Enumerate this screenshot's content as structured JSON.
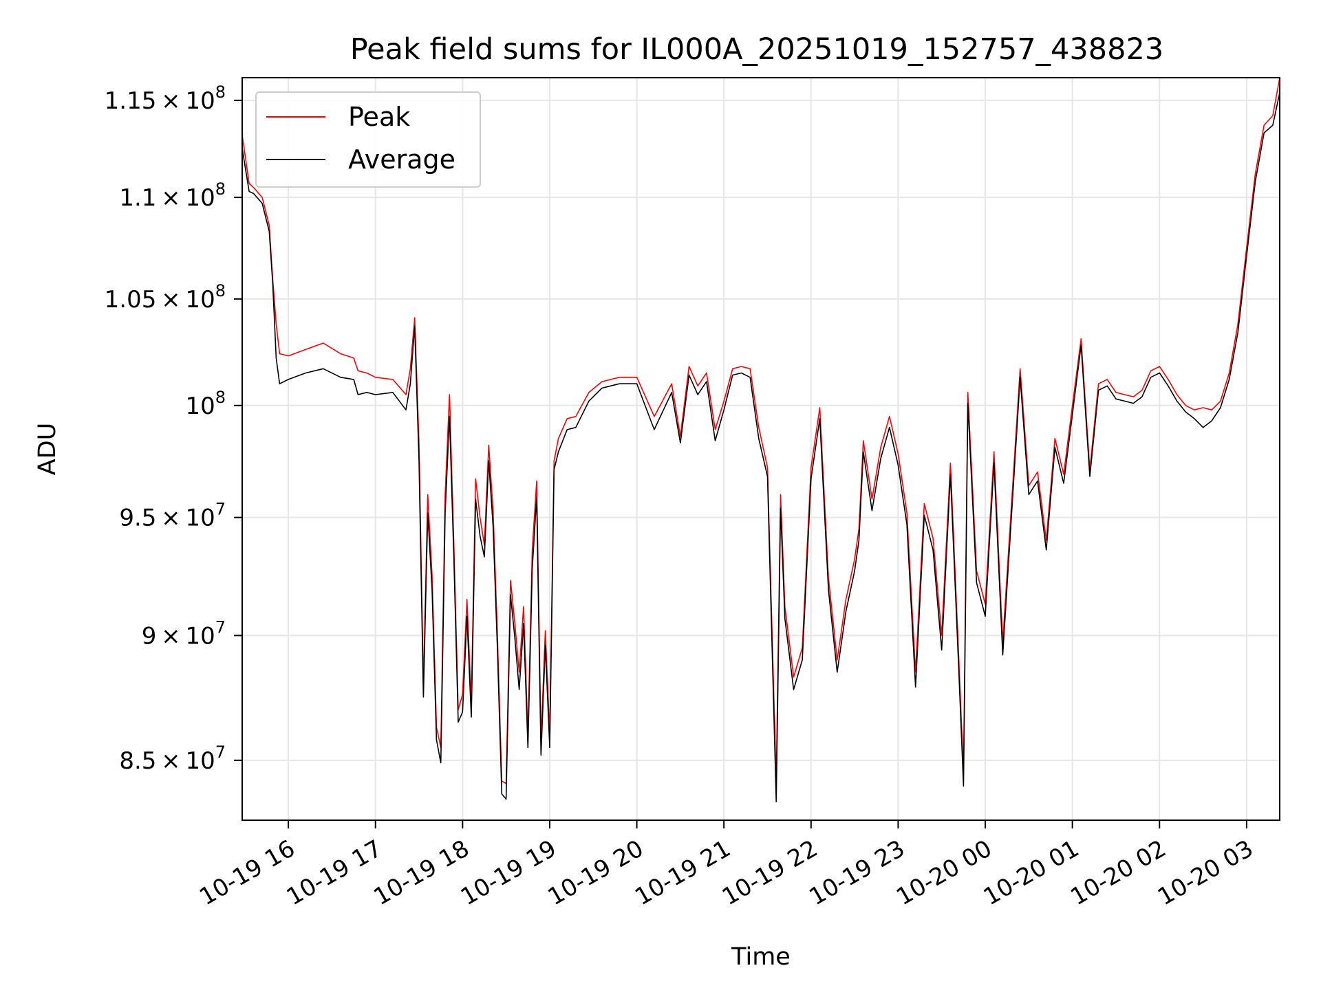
{
  "chart_data": {
    "type": "line",
    "title": "Peak field sums for IL000A_20251019_152757_438823",
    "xlabel": "Time",
    "ylabel": "ADU",
    "yscale": "log",
    "grid": true,
    "legend_position": "upper-left",
    "x_range_hours": [
      15.47,
      27.38
    ],
    "ylim": [
      82700000,
      116200000
    ],
    "x_ticks": [
      {
        "hour": 16,
        "label": "10-19 16"
      },
      {
        "hour": 17,
        "label": "10-19 17"
      },
      {
        "hour": 18,
        "label": "10-19 18"
      },
      {
        "hour": 19,
        "label": "10-19 19"
      },
      {
        "hour": 20,
        "label": "10-19 20"
      },
      {
        "hour": 21,
        "label": "10-19 21"
      },
      {
        "hour": 22,
        "label": "10-19 22"
      },
      {
        "hour": 23,
        "label": "10-19 23"
      },
      {
        "hour": 24,
        "label": "10-20 00"
      },
      {
        "hour": 25,
        "label": "10-20 01"
      },
      {
        "hour": 26,
        "label": "10-20 02"
      },
      {
        "hour": 27,
        "label": "10-20 03"
      }
    ],
    "y_ticks": [
      {
        "value": 85000000,
        "mantissa": "8.5",
        "exponent": "7"
      },
      {
        "value": 90000000,
        "mantissa": "9",
        "exponent": "7"
      },
      {
        "value": 95000000,
        "mantissa": "9.5",
        "exponent": "7"
      },
      {
        "value": 100000000,
        "mantissa": "",
        "exponent": "8"
      },
      {
        "value": 105000000,
        "mantissa": "1.05",
        "exponent": "8"
      },
      {
        "value": 110000000,
        "mantissa": "1.1",
        "exponent": "8"
      },
      {
        "value": 115000000,
        "mantissa": "1.15",
        "exponent": "8"
      }
    ],
    "x_hours": [
      15.47,
      15.55,
      15.6,
      15.7,
      15.78,
      15.82,
      15.86,
      15.9,
      16.0,
      16.2,
      16.4,
      16.6,
      16.75,
      16.8,
      16.9,
      17.0,
      17.2,
      17.35,
      17.4,
      17.45,
      17.5,
      17.55,
      17.6,
      17.65,
      17.7,
      17.75,
      17.8,
      17.85,
      17.9,
      17.95,
      18.0,
      18.05,
      18.1,
      18.15,
      18.2,
      18.25,
      18.3,
      18.35,
      18.4,
      18.45,
      18.5,
      18.55,
      18.6,
      18.65,
      18.7,
      18.75,
      18.8,
      18.85,
      18.9,
      18.95,
      19.0,
      19.05,
      19.1,
      19.2,
      19.3,
      19.45,
      19.6,
      19.8,
      20.0,
      20.2,
      20.4,
      20.5,
      20.6,
      20.7,
      20.8,
      20.9,
      21.0,
      21.1,
      21.2,
      21.3,
      21.4,
      21.5,
      21.55,
      21.6,
      21.65,
      21.7,
      21.8,
      21.9,
      22.0,
      22.1,
      22.2,
      22.3,
      22.4,
      22.5,
      22.55,
      22.6,
      22.7,
      22.8,
      22.9,
      23.0,
      23.1,
      23.2,
      23.3,
      23.4,
      23.5,
      23.6,
      23.7,
      23.75,
      23.8,
      23.9,
      24.0,
      24.1,
      24.2,
      24.3,
      24.4,
      24.5,
      24.6,
      24.7,
      24.8,
      24.9,
      25.0,
      25.1,
      25.2,
      25.3,
      25.4,
      25.5,
      25.6,
      25.7,
      25.8,
      25.9,
      26.0,
      26.1,
      26.2,
      26.3,
      26.4,
      26.5,
      26.6,
      26.7,
      26.8,
      26.9,
      27.0,
      27.1,
      27.2,
      27.3,
      27.38
    ],
    "series": [
      {
        "name": "Peak",
        "color": "#ff0000",
        "values": [
          113200000,
          110700000,
          110500000,
          110000000,
          108600000,
          106000000,
          103800000,
          102400000,
          102300000,
          102600000,
          102900000,
          102400000,
          102200000,
          101600000,
          101500000,
          101300000,
          101200000,
          100500000,
          101700000,
          104100000,
          98300000,
          88000000,
          96000000,
          92500000,
          86300000,
          85500000,
          96000000,
          100500000,
          93800000,
          87000000,
          87600000,
          91500000,
          87300000,
          96700000,
          95000000,
          93800000,
          98200000,
          95300000,
          90000000,
          84200000,
          84100000,
          92300000,
          90500000,
          88500000,
          91200000,
          86000000,
          93600000,
          96600000,
          85800000,
          90200000,
          86000000,
          97500000,
          98500000,
          99400000,
          99500000,
          100600000,
          101100000,
          101300000,
          101300000,
          99500000,
          101000000,
          98600000,
          101800000,
          100900000,
          101500000,
          98900000,
          100200000,
          101700000,
          101800000,
          101700000,
          99000000,
          97200000,
          90500000,
          84200000,
          96000000,
          91200000,
          88300000,
          89500000,
          97200000,
          99900000,
          92400000,
          89000000,
          91500000,
          93200000,
          94500000,
          98400000,
          95800000,
          98100000,
          99500000,
          97800000,
          95200000,
          88500000,
          95600000,
          94100000,
          90000000,
          97400000,
          88700000,
          84500000,
          100600000,
          92700000,
          91300000,
          97900000,
          89700000,
          95500000,
          101700000,
          96400000,
          97000000,
          94000000,
          98500000,
          96900000,
          100000000,
          103100000,
          97100000,
          101000000,
          101200000,
          100600000,
          100500000,
          100400000,
          100700000,
          101600000,
          101800000,
          101200000,
          100500000,
          100000000,
          99800000,
          99900000,
          99800000,
          100200000,
          101500000,
          103800000,
          107500000,
          111200000,
          113700000,
          114200000,
          116200000
        ]
      },
      {
        "name": "Average",
        "color": "#000000",
        "values": [
          112500000,
          110300000,
          110200000,
          109700000,
          108300000,
          105800000,
          102200000,
          101000000,
          101200000,
          101500000,
          101700000,
          101300000,
          101200000,
          100500000,
          100600000,
          100500000,
          100600000,
          99800000,
          101000000,
          103700000,
          97500000,
          87500000,
          95200000,
          91900000,
          85800000,
          84900000,
          95200000,
          99500000,
          93200000,
          86500000,
          86900000,
          90800000,
          86700000,
          95800000,
          94200000,
          93300000,
          97500000,
          94600000,
          89400000,
          83700000,
          83500000,
          91700000,
          89900000,
          87800000,
          90500000,
          85500000,
          92800000,
          95900000,
          85200000,
          89600000,
          85500000,
          97100000,
          97900000,
          98900000,
          99000000,
          100200000,
          100800000,
          101000000,
          101000000,
          98900000,
          100600000,
          98300000,
          101400000,
          100500000,
          101100000,
          98400000,
          99800000,
          101400000,
          101500000,
          101300000,
          98500000,
          96800000,
          89900000,
          83400000,
          95400000,
          90700000,
          87800000,
          89000000,
          96700000,
          99400000,
          91900000,
          88500000,
          91000000,
          92700000,
          94000000,
          97900000,
          95300000,
          97600000,
          99000000,
          97300000,
          94700000,
          87900000,
          95100000,
          93600000,
          89400000,
          96900000,
          88200000,
          84000000,
          100100000,
          92200000,
          90800000,
          97400000,
          89200000,
          95000000,
          101300000,
          96000000,
          96600000,
          93600000,
          98100000,
          96500000,
          99600000,
          102800000,
          96800000,
          100700000,
          100900000,
          100300000,
          100200000,
          100100000,
          100400000,
          101300000,
          101500000,
          100900000,
          100200000,
          99700000,
          99400000,
          99000000,
          99300000,
          99900000,
          101200000,
          103400000,
          107100000,
          110800000,
          113300000,
          113700000,
          115400000
        ]
      }
    ]
  }
}
